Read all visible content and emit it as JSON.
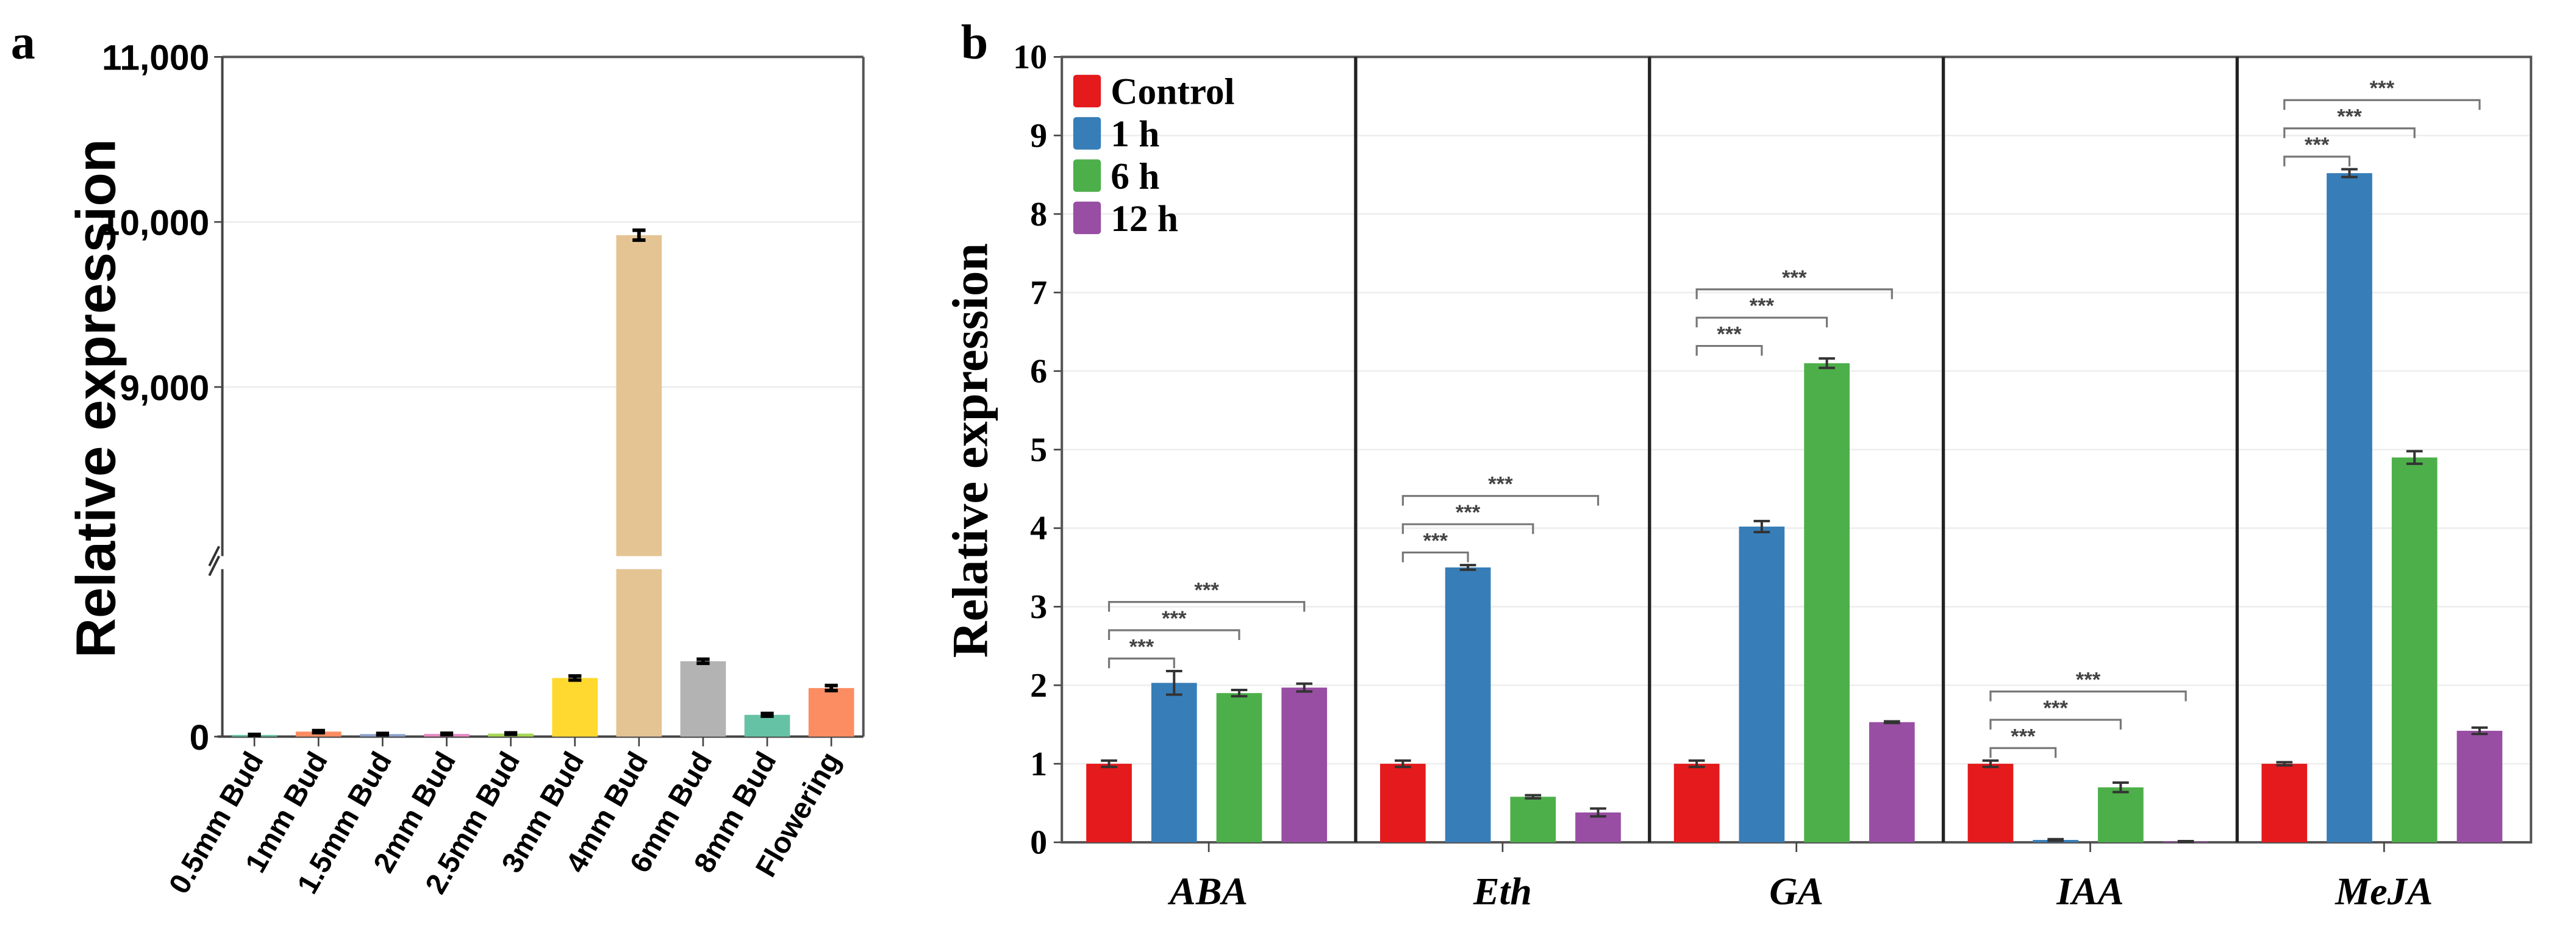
{
  "panel_labels": {
    "a": "a",
    "b": "b"
  },
  "chart_data": [
    {
      "type": "bar",
      "panel": "a",
      "ylabel": "Relative expression",
      "xlabel": "",
      "axis_break": true,
      "lower_ylim": [
        0,
        100
      ],
      "upper_ylim": [
        7930,
        11000
      ],
      "yticks": [
        {
          "value": 0,
          "label": "0"
        },
        {
          "value": 9000,
          "label": "9,000"
        },
        {
          "value": 10000,
          "label": "10,000"
        },
        {
          "value": 11000,
          "label": "11,000"
        }
      ],
      "categories": [
        "0.5mm Bud",
        "1mm Bud",
        "1.5mm Bud",
        "2mm Bud",
        "2.5mm  Bud",
        "3mm  Bud",
        "4mm Bud",
        "6mm Bud",
        "8mm Bud",
        "Flowering"
      ],
      "values": [
        1,
        3,
        1.5,
        1.6,
        1.8,
        35,
        9920,
        45,
        13,
        29
      ],
      "errors": [
        0.3,
        0.6,
        0.4,
        0.4,
        0.4,
        1.2,
        30,
        1.2,
        0.8,
        1.5
      ],
      "colors": [
        "#66c2a5",
        "#fc8d62",
        "#8da0cb",
        "#e78ac3",
        "#a6d854",
        "#ffd92f",
        "#e5c494",
        "#b3b3b3",
        "#66c2a5",
        "#fc8d62"
      ],
      "grid": true
    },
    {
      "type": "bar",
      "panel": "b",
      "ylabel": "Relative expression",
      "xlabel": "",
      "ylim": [
        0,
        10
      ],
      "yticks": [
        "0",
        "1",
        "2",
        "3",
        "4",
        "5",
        "6",
        "7",
        "8",
        "9",
        "10"
      ],
      "categories": [
        "ABA",
        "Eth",
        "GA",
        "IAA",
        "MeJA"
      ],
      "legend_position": "top-left",
      "series": [
        {
          "name": "Control",
          "color": "#e41a1c",
          "values": [
            1.0,
            1.0,
            1.0,
            1.0,
            1.0
          ],
          "errors": [
            0.04,
            0.04,
            0.04,
            0.04,
            0.02
          ]
        },
        {
          "name": "1 h",
          "color": "#377eb8",
          "values": [
            2.03,
            3.5,
            4.02,
            0.03,
            8.52
          ],
          "errors": [
            0.15,
            0.03,
            0.07,
            0.01,
            0.05
          ]
        },
        {
          "name": "6 h",
          "color": "#4daf4a",
          "values": [
            1.9,
            0.58,
            6.1,
            0.7,
            4.9
          ],
          "errors": [
            0.04,
            0.02,
            0.06,
            0.06,
            0.08
          ]
        },
        {
          "name": "12 h",
          "color": "#984ea3",
          "values": [
            1.97,
            0.38,
            1.53,
            0.01,
            1.42
          ],
          "errors": [
            0.05,
            0.05,
            0.01,
            0.005,
            0.04
          ]
        }
      ],
      "significance": {
        "label": "***",
        "comparisons": [
          "Control vs 1 h",
          "Control vs 6 h",
          "Control vs 12 h"
        ]
      },
      "grid": true
    }
  ]
}
